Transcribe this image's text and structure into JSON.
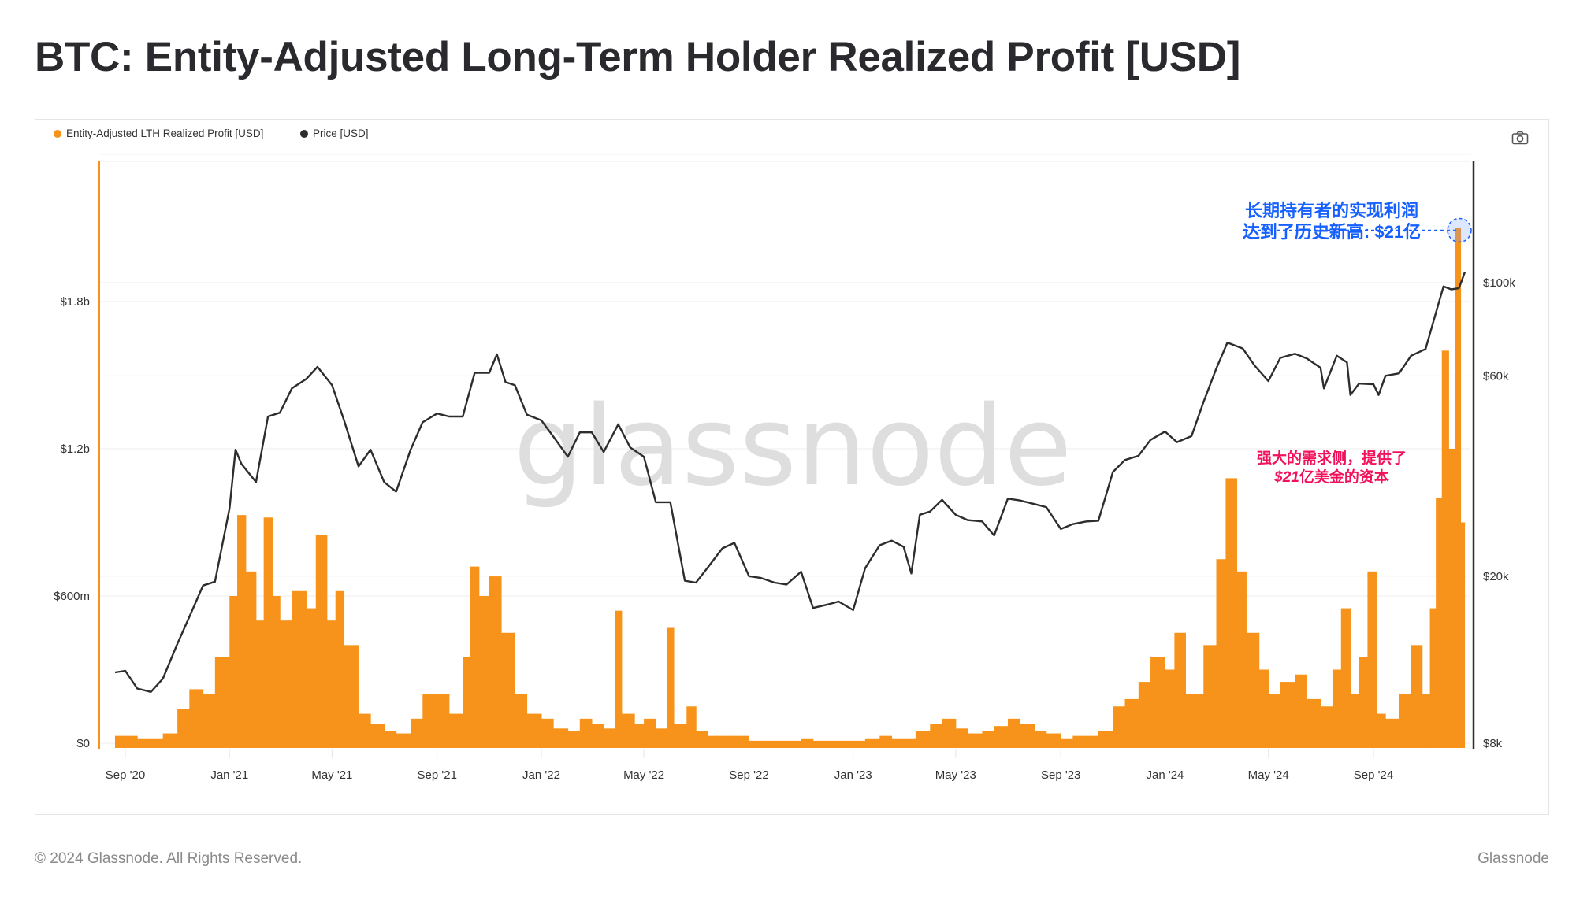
{
  "title": "BTC: Entity-Adjusted Long-Term Holder Realized Profit [USD]",
  "footer": {
    "copyright": "© 2024 Glassnode. All Rights Reserved.",
    "brand": "Glassnode"
  },
  "watermark": "glassnode",
  "colors": {
    "profit": "#f7931a",
    "price": "#2d2d2d",
    "annotation_blue": "#1560ff",
    "annotation_pink": "#f2125c"
  },
  "annotations": {
    "ath_line1": "长期持有者的实现利润",
    "ath_line2": "达到了历史新高: $21亿",
    "demand_line1": "强大的需求侧，提供了",
    "demand_line2_amount": "$21",
    "demand_line2_rest": "亿美金的资本"
  },
  "chart_data": {
    "type": "bar+line",
    "title": "BTC: Entity-Adjusted Long-Term Holder Realized Profit [USD]",
    "legend": [
      "Entity-Adjusted LTH Realized Profit [USD]",
      "Price [USD]"
    ],
    "legend_placement": "top-left",
    "x_ticks": [
      "Sep '20",
      "Jan '21",
      "May '21",
      "Sep '21",
      "Jan '22",
      "May '22",
      "Sep '22",
      "Jan '23",
      "May '23",
      "Sep '23",
      "Jan '24",
      "May '24",
      "Sep '24"
    ],
    "x_tick_dates": [
      "2020-09-01",
      "2021-01-01",
      "2021-05-01",
      "2021-09-01",
      "2022-01-01",
      "2022-05-01",
      "2022-09-01",
      "2023-01-01",
      "2023-05-01",
      "2023-09-01",
      "2024-01-01",
      "2024-05-01",
      "2024-09-01"
    ],
    "x_range": [
      "2020-08-20",
      "2024-12-18"
    ],
    "left_axis": {
      "label": "Entity-Adjusted LTH Realized Profit [USD]",
      "scale": "linear",
      "ticks": [
        "$0",
        "$600m",
        "$1.2b",
        "$1.8b"
      ],
      "tick_values": [
        0,
        0.6,
        1.2,
        1.8
      ],
      "unit": "billion USD",
      "range": [
        0,
        2.5
      ]
    },
    "right_axis": {
      "label": "Price [USD]",
      "scale": "log",
      "ticks": [
        "$8k",
        "$20k",
        "$60k",
        "$100k"
      ],
      "tick_values": [
        8000,
        20000,
        60000,
        100000
      ],
      "range": [
        8000,
        160000
      ]
    },
    "grid": true,
    "profit_billion": [
      [
        "2020-08-20",
        0.03
      ],
      [
        "2020-09-01",
        0.03
      ],
      [
        "2020-09-15",
        0.02
      ],
      [
        "2020-10-01",
        0.02
      ],
      [
        "2020-10-15",
        0.04
      ],
      [
        "2020-11-01",
        0.14
      ],
      [
        "2020-11-15",
        0.22
      ],
      [
        "2020-12-01",
        0.2
      ],
      [
        "2020-12-15",
        0.35
      ],
      [
        "2021-01-01",
        0.6
      ],
      [
        "2021-01-10",
        0.93
      ],
      [
        "2021-01-20",
        0.7
      ],
      [
        "2021-02-01",
        0.5
      ],
      [
        "2021-02-10",
        0.92
      ],
      [
        "2021-02-20",
        0.6
      ],
      [
        "2021-03-01",
        0.5
      ],
      [
        "2021-03-15",
        0.62
      ],
      [
        "2021-04-01",
        0.55
      ],
      [
        "2021-04-12",
        0.85
      ],
      [
        "2021-04-25",
        0.5
      ],
      [
        "2021-05-05",
        0.62
      ],
      [
        "2021-05-15",
        0.4
      ],
      [
        "2021-06-01",
        0.12
      ],
      [
        "2021-06-15",
        0.08
      ],
      [
        "2021-07-01",
        0.05
      ],
      [
        "2021-07-15",
        0.04
      ],
      [
        "2021-08-01",
        0.1
      ],
      [
        "2021-08-15",
        0.2
      ],
      [
        "2021-09-01",
        0.2
      ],
      [
        "2021-09-15",
        0.12
      ],
      [
        "2021-10-01",
        0.35
      ],
      [
        "2021-10-10",
        0.72
      ],
      [
        "2021-10-20",
        0.6
      ],
      [
        "2021-11-01",
        0.68
      ],
      [
        "2021-11-15",
        0.45
      ],
      [
        "2021-12-01",
        0.2
      ],
      [
        "2021-12-15",
        0.12
      ],
      [
        "2022-01-01",
        0.1
      ],
      [
        "2022-01-15",
        0.06
      ],
      [
        "2022-02-01",
        0.05
      ],
      [
        "2022-02-15",
        0.1
      ],
      [
        "2022-03-01",
        0.08
      ],
      [
        "2022-03-15",
        0.06
      ],
      [
        "2022-03-28",
        0.54
      ],
      [
        "2022-04-05",
        0.12
      ],
      [
        "2022-04-20",
        0.08
      ],
      [
        "2022-05-01",
        0.1
      ],
      [
        "2022-05-15",
        0.06
      ],
      [
        "2022-05-28",
        0.47
      ],
      [
        "2022-06-05",
        0.08
      ],
      [
        "2022-06-20",
        0.15
      ],
      [
        "2022-07-01",
        0.05
      ],
      [
        "2022-07-15",
        0.03
      ],
      [
        "2022-08-01",
        0.03
      ],
      [
        "2022-08-15",
        0.03
      ],
      [
        "2022-09-01",
        0.01
      ],
      [
        "2022-09-15",
        0.01
      ],
      [
        "2022-10-01",
        0.01
      ],
      [
        "2022-10-15",
        0.01
      ],
      [
        "2022-11-01",
        0.02
      ],
      [
        "2022-11-15",
        0.01
      ],
      [
        "2022-12-01",
        0.01
      ],
      [
        "2022-12-15",
        0.01
      ],
      [
        "2023-01-01",
        0.01
      ],
      [
        "2023-01-15",
        0.02
      ],
      [
        "2023-02-01",
        0.03
      ],
      [
        "2023-02-15",
        0.02
      ],
      [
        "2023-03-01",
        0.02
      ],
      [
        "2023-03-15",
        0.05
      ],
      [
        "2023-04-01",
        0.08
      ],
      [
        "2023-04-15",
        0.1
      ],
      [
        "2023-05-01",
        0.06
      ],
      [
        "2023-05-15",
        0.04
      ],
      [
        "2023-06-01",
        0.05
      ],
      [
        "2023-06-15",
        0.07
      ],
      [
        "2023-07-01",
        0.1
      ],
      [
        "2023-07-15",
        0.08
      ],
      [
        "2023-08-01",
        0.05
      ],
      [
        "2023-08-15",
        0.04
      ],
      [
        "2023-09-01",
        0.02
      ],
      [
        "2023-09-15",
        0.03
      ],
      [
        "2023-10-01",
        0.03
      ],
      [
        "2023-10-15",
        0.05
      ],
      [
        "2023-11-01",
        0.15
      ],
      [
        "2023-11-15",
        0.18
      ],
      [
        "2023-12-01",
        0.25
      ],
      [
        "2023-12-15",
        0.35
      ],
      [
        "2024-01-01",
        0.3
      ],
      [
        "2024-01-12",
        0.45
      ],
      [
        "2024-01-25",
        0.2
      ],
      [
        "2024-02-01",
        0.2
      ],
      [
        "2024-02-15",
        0.4
      ],
      [
        "2024-03-01",
        0.75
      ],
      [
        "2024-03-12",
        1.08
      ],
      [
        "2024-03-25",
        0.7
      ],
      [
        "2024-04-05",
        0.45
      ],
      [
        "2024-04-20",
        0.3
      ],
      [
        "2024-05-01",
        0.2
      ],
      [
        "2024-05-15",
        0.25
      ],
      [
        "2024-06-01",
        0.28
      ],
      [
        "2024-06-15",
        0.18
      ],
      [
        "2024-07-01",
        0.15
      ],
      [
        "2024-07-15",
        0.3
      ],
      [
        "2024-07-25",
        0.55
      ],
      [
        "2024-08-05",
        0.2
      ],
      [
        "2024-08-15",
        0.35
      ],
      [
        "2024-08-25",
        0.7
      ],
      [
        "2024-09-05",
        0.12
      ],
      [
        "2024-09-15",
        0.1
      ],
      [
        "2024-10-01",
        0.2
      ],
      [
        "2024-10-15",
        0.4
      ],
      [
        "2024-10-28",
        0.2
      ],
      [
        "2024-11-06",
        0.55
      ],
      [
        "2024-11-13",
        1.0
      ],
      [
        "2024-11-20",
        1.6
      ],
      [
        "2024-11-28",
        1.2
      ],
      [
        "2024-12-05",
        2.1
      ],
      [
        "2024-12-12",
        0.9
      ]
    ],
    "price_usd": [
      [
        "2020-08-20",
        11800
      ],
      [
        "2020-09-01",
        11900
      ],
      [
        "2020-09-15",
        10800
      ],
      [
        "2020-10-01",
        10600
      ],
      [
        "2020-10-15",
        11400
      ],
      [
        "2020-11-01",
        13800
      ],
      [
        "2020-11-15",
        16000
      ],
      [
        "2020-12-01",
        19000
      ],
      [
        "2020-12-15",
        19400
      ],
      [
        "2021-01-01",
        29000
      ],
      [
        "2021-01-08",
        40000
      ],
      [
        "2021-01-15",
        37000
      ],
      [
        "2021-02-01",
        33500
      ],
      [
        "2021-02-15",
        48000
      ],
      [
        "2021-03-01",
        49000
      ],
      [
        "2021-03-15",
        56000
      ],
      [
        "2021-04-01",
        59000
      ],
      [
        "2021-04-14",
        63000
      ],
      [
        "2021-05-01",
        57000
      ],
      [
        "2021-05-15",
        47000
      ],
      [
        "2021-06-01",
        36500
      ],
      [
        "2021-06-15",
        40000
      ],
      [
        "2021-07-01",
        33500
      ],
      [
        "2021-07-15",
        31800
      ],
      [
        "2021-08-01",
        40000
      ],
      [
        "2021-08-15",
        46500
      ],
      [
        "2021-09-01",
        48800
      ],
      [
        "2021-09-15",
        48000
      ],
      [
        "2021-10-01",
        48000
      ],
      [
        "2021-10-15",
        61000
      ],
      [
        "2021-11-01",
        61000
      ],
      [
        "2021-11-10",
        67500
      ],
      [
        "2021-11-20",
        58000
      ],
      [
        "2021-12-01",
        57000
      ],
      [
        "2021-12-15",
        48500
      ],
      [
        "2022-01-01",
        47000
      ],
      [
        "2022-01-15",
        43000
      ],
      [
        "2022-02-01",
        38500
      ],
      [
        "2022-02-15",
        44000
      ],
      [
        "2022-03-01",
        44000
      ],
      [
        "2022-03-15",
        39500
      ],
      [
        "2022-04-01",
        46000
      ],
      [
        "2022-04-15",
        40500
      ],
      [
        "2022-05-01",
        38500
      ],
      [
        "2022-05-15",
        30000
      ],
      [
        "2022-06-01",
        30000
      ],
      [
        "2022-06-18",
        19500
      ],
      [
        "2022-07-01",
        19300
      ],
      [
        "2022-07-15",
        21000
      ],
      [
        "2022-08-01",
        23300
      ],
      [
        "2022-08-15",
        24000
      ],
      [
        "2022-09-01",
        20000
      ],
      [
        "2022-09-15",
        19800
      ],
      [
        "2022-10-01",
        19300
      ],
      [
        "2022-10-15",
        19100
      ],
      [
        "2022-11-01",
        20500
      ],
      [
        "2022-11-15",
        16800
      ],
      [
        "2022-12-01",
        17100
      ],
      [
        "2022-12-15",
        17400
      ],
      [
        "2023-01-01",
        16600
      ],
      [
        "2023-01-15",
        20900
      ],
      [
        "2023-02-01",
        23700
      ],
      [
        "2023-02-15",
        24300
      ],
      [
        "2023-03-01",
        23500
      ],
      [
        "2023-03-10",
        20300
      ],
      [
        "2023-03-20",
        28000
      ],
      [
        "2023-04-01",
        28500
      ],
      [
        "2023-04-15",
        30400
      ],
      [
        "2023-05-01",
        28000
      ],
      [
        "2023-05-15",
        27200
      ],
      [
        "2023-06-01",
        27000
      ],
      [
        "2023-06-15",
        25000
      ],
      [
        "2023-07-01",
        30600
      ],
      [
        "2023-07-15",
        30300
      ],
      [
        "2023-08-01",
        29700
      ],
      [
        "2023-08-15",
        29200
      ],
      [
        "2023-09-01",
        25900
      ],
      [
        "2023-09-15",
        26600
      ],
      [
        "2023-10-01",
        27000
      ],
      [
        "2023-10-15",
        27100
      ],
      [
        "2023-11-01",
        35400
      ],
      [
        "2023-11-15",
        37800
      ],
      [
        "2023-12-01",
        38700
      ],
      [
        "2023-12-15",
        42200
      ],
      [
        "2024-01-01",
        44200
      ],
      [
        "2024-01-15",
        41700
      ],
      [
        "2024-02-01",
        43100
      ],
      [
        "2024-02-15",
        51900
      ],
      [
        "2024-03-01",
        62400
      ],
      [
        "2024-03-14",
        72000
      ],
      [
        "2024-04-01",
        69700
      ],
      [
        "2024-04-15",
        63400
      ],
      [
        "2024-05-01",
        58300
      ],
      [
        "2024-05-15",
        66200
      ],
      [
        "2024-06-01",
        67700
      ],
      [
        "2024-06-15",
        66000
      ],
      [
        "2024-07-01",
        62700
      ],
      [
        "2024-07-05",
        56000
      ],
      [
        "2024-07-20",
        67000
      ],
      [
        "2024-08-01",
        64600
      ],
      [
        "2024-08-05",
        54000
      ],
      [
        "2024-08-15",
        57500
      ],
      [
        "2024-09-01",
        57300
      ],
      [
        "2024-09-07",
        54000
      ],
      [
        "2024-09-15",
        60000
      ],
      [
        "2024-10-01",
        60800
      ],
      [
        "2024-10-15",
        67000
      ],
      [
        "2024-11-01",
        69500
      ],
      [
        "2024-11-15",
        87500
      ],
      [
        "2024-11-22",
        98000
      ],
      [
        "2024-12-01",
        96400
      ],
      [
        "2024-12-10",
        97000
      ],
      [
        "2024-12-17",
        106000
      ]
    ],
    "annotation_ath_profit_billion": 2.1
  }
}
